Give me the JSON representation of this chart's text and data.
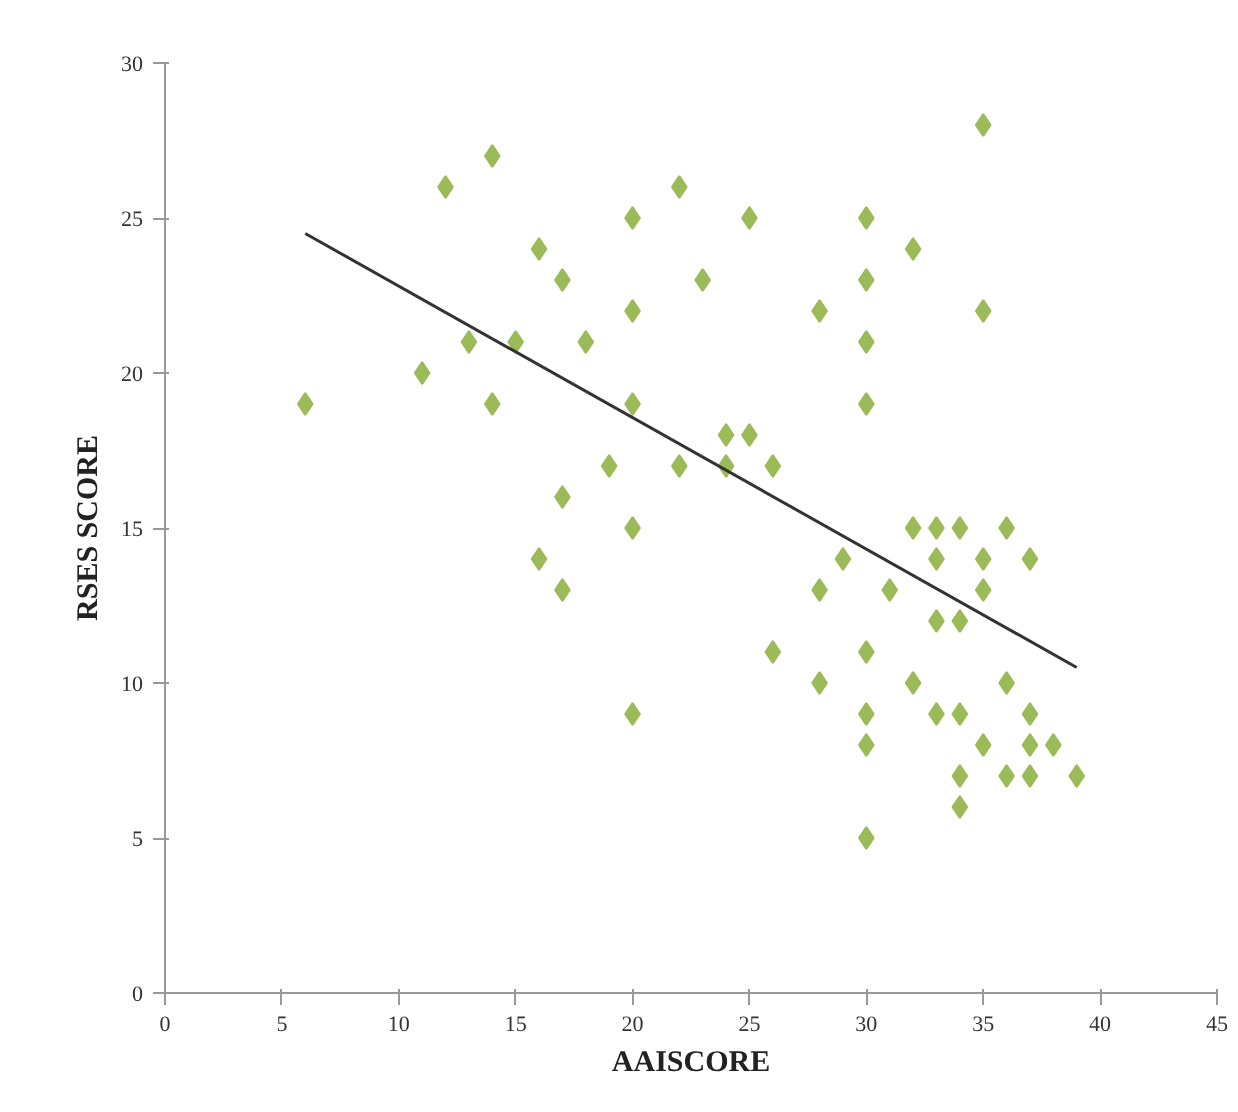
{
  "chart_data": {
    "type": "scatter",
    "xlabel": "AAISCORE",
    "ylabel": "RSES SCORE",
    "xlim": [
      0,
      45
    ],
    "ylim": [
      0,
      30
    ],
    "xticks": [
      0,
      5,
      10,
      15,
      20,
      25,
      30,
      35,
      40,
      45
    ],
    "yticks": [
      0,
      5,
      10,
      15,
      20,
      25,
      30
    ],
    "grid": false,
    "series": [
      {
        "color": "#9bbb59",
        "marker": "diamond",
        "x": [
          6,
          11,
          12,
          13,
          14,
          14,
          15,
          16,
          16,
          17,
          17,
          17,
          18,
          19,
          20,
          20,
          20,
          20,
          20,
          22,
          22,
          23,
          24,
          24,
          25,
          25,
          26,
          26,
          28,
          28,
          28,
          29,
          30,
          30,
          30,
          30,
          30,
          30,
          30,
          30,
          31,
          32,
          32,
          32,
          33,
          33,
          33,
          33,
          34,
          34,
          34,
          34,
          34,
          35,
          35,
          35,
          35,
          35,
          36,
          36,
          36,
          37,
          37,
          37,
          37,
          38,
          39
        ],
        "values": [
          19,
          20,
          26,
          21,
          27,
          19,
          21,
          24,
          14,
          23,
          16,
          13,
          21,
          17,
          25,
          22,
          19,
          15,
          9,
          26,
          17,
          23,
          18,
          17,
          25,
          18,
          17,
          11,
          22,
          13,
          10,
          14,
          25,
          23,
          21,
          19,
          11,
          9,
          8,
          5,
          13,
          24,
          15,
          10,
          15,
          14,
          12,
          9,
          15,
          12,
          9,
          7,
          6,
          28,
          22,
          14,
          13,
          8,
          15,
          10,
          7,
          14,
          9,
          8,
          7,
          8,
          7
        ]
      },
      {
        "type": "line",
        "color": "#333333",
        "x": [
          6,
          39
        ],
        "values": [
          24.5,
          10.5
        ]
      }
    ]
  }
}
